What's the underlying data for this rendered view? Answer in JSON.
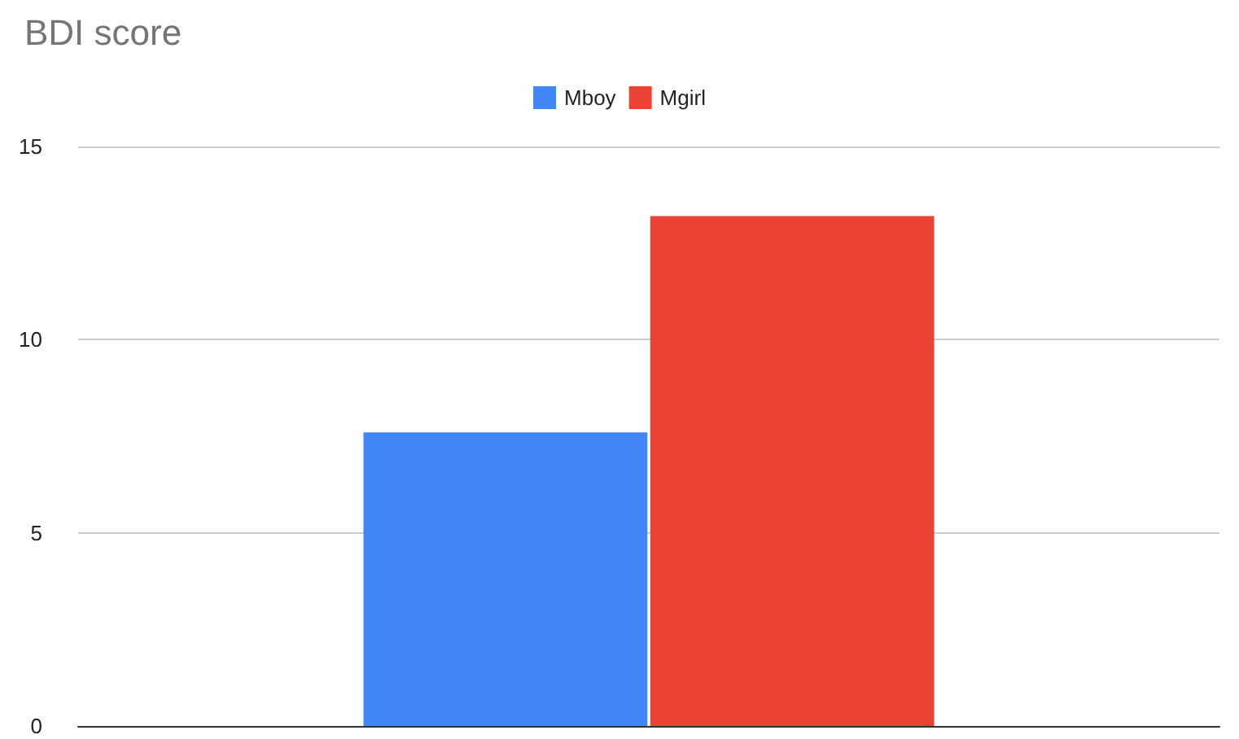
{
  "chart_data": {
    "type": "bar",
    "title": "BDI score",
    "categories": [
      null
    ],
    "series": [
      {
        "name": "Mboy",
        "color": "#4285f4",
        "values": [
          7.6
        ]
      },
      {
        "name": "Mgirl",
        "color": "#ea4335",
        "values": [
          13.2
        ]
      }
    ],
    "ylim": [
      0,
      15
    ],
    "yticks": [
      0,
      5,
      10,
      15
    ],
    "grid": "y",
    "legend": "top"
  }
}
